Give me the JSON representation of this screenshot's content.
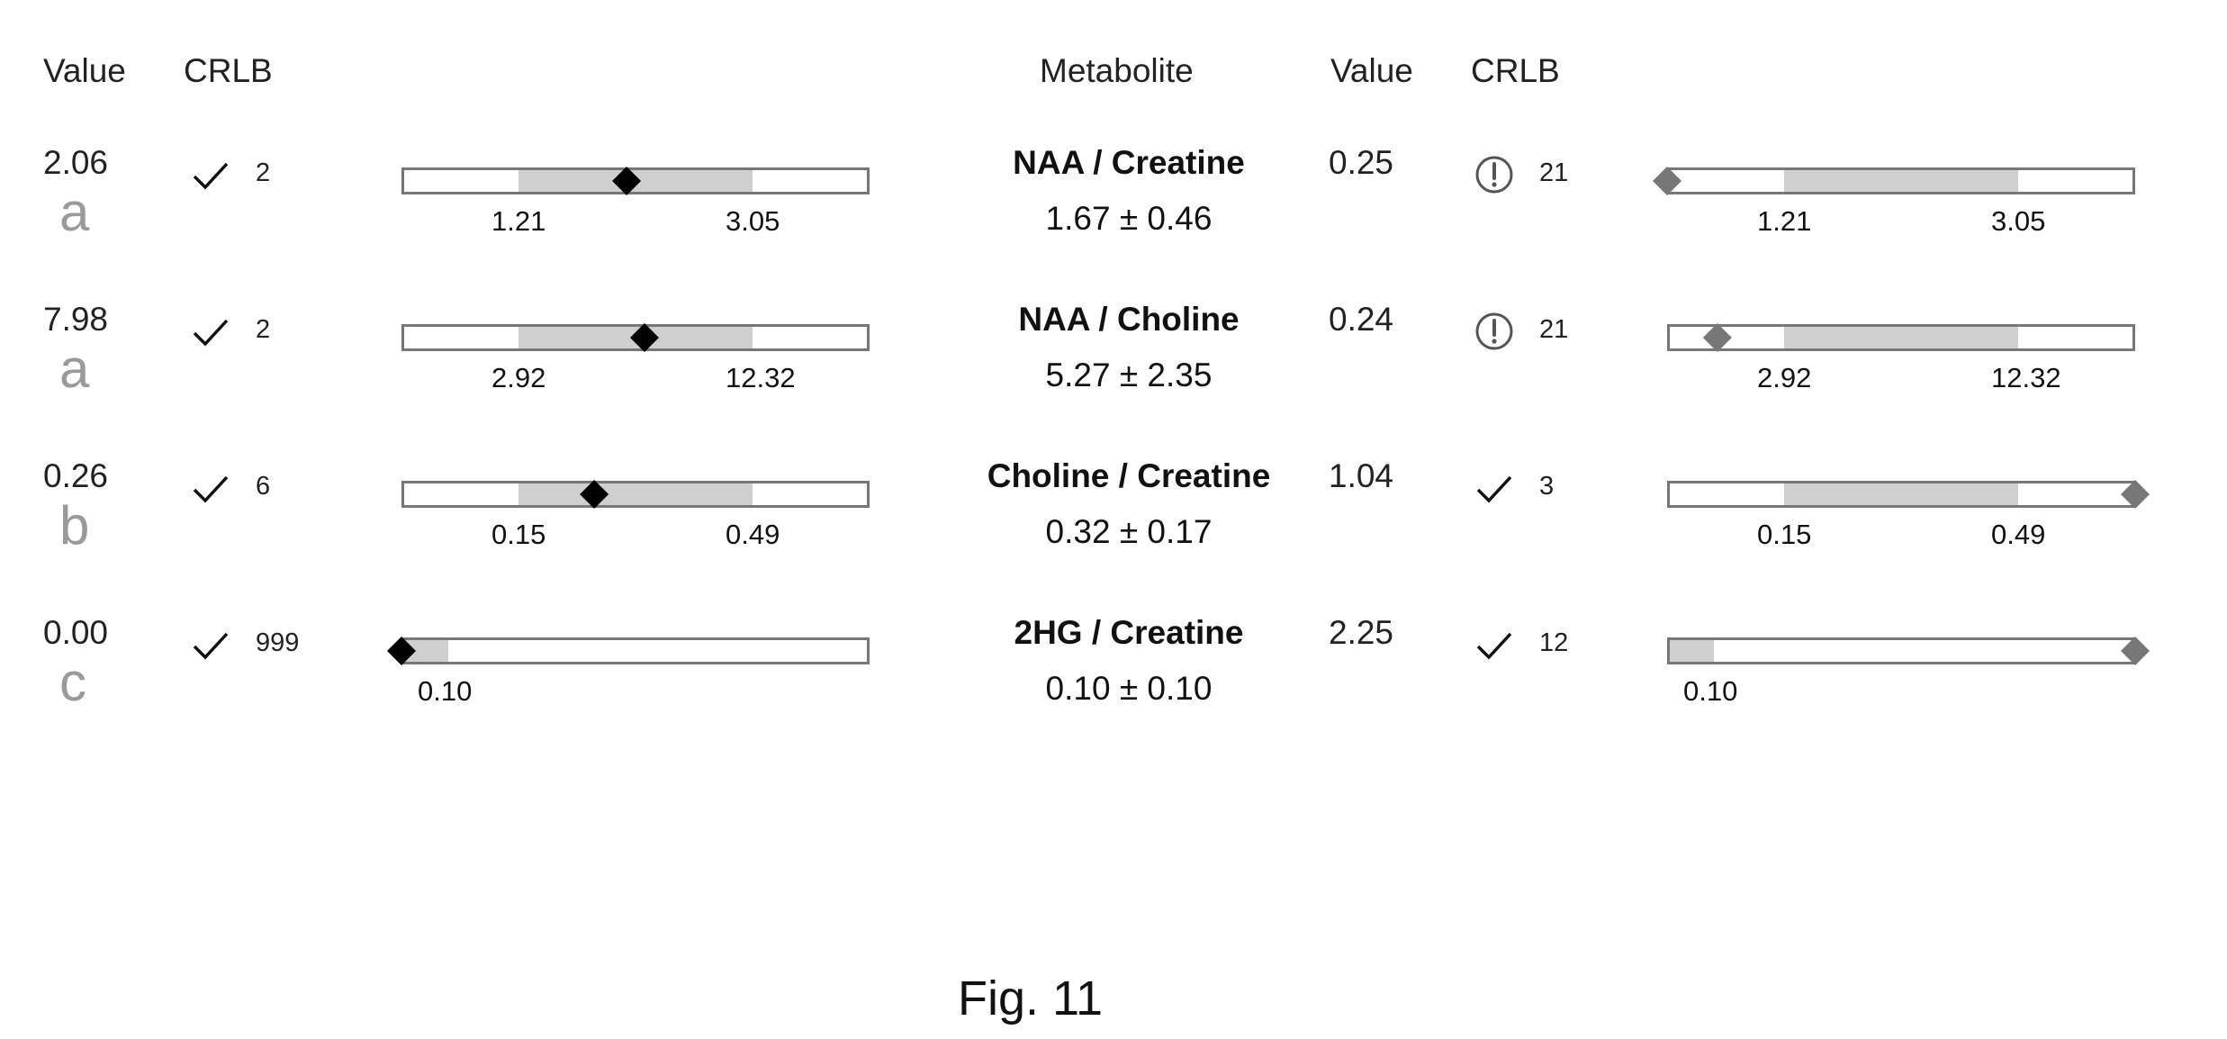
{
  "headers": {
    "left_value": "Value",
    "left_crlb": "CRLB",
    "metabolite": "Metabolite",
    "right_value": "Value",
    "right_crlb": "CRLB"
  },
  "rows": [
    {
      "metabolite": "NAA / Creatine",
      "range_text": "1.67 ± 0.46",
      "left": {
        "value": "2.06",
        "grade": "a",
        "crlb": "2",
        "crlb_status": "check",
        "marker": 2.06
      },
      "right": {
        "value": "0.25",
        "crlb": "21",
        "crlb_status": "warning",
        "marker": 0.25
      },
      "scale": {
        "min_label": "1.21",
        "max_label": "3.05",
        "low": 1.21,
        "high": 3.05,
        "left_shaded": [
          1.21,
          3.05
        ],
        "right_shaded": [
          1.21,
          3.05
        ]
      }
    },
    {
      "metabolite": "NAA / Choline",
      "range_text": "5.27 ± 2.35",
      "left": {
        "value": "7.98",
        "grade": "a",
        "crlb": "2",
        "crlb_status": "check",
        "marker": 7.98
      },
      "right": {
        "value": "0.24",
        "crlb": "21",
        "crlb_status": "warning",
        "marker": 0.24
      },
      "scale": {
        "min_label": "2.92",
        "max_label": "12.32",
        "low": 2.92,
        "high": 12.32,
        "left_shaded": [
          2.92,
          12.32
        ],
        "right_shaded": [
          2.92,
          12.32
        ]
      }
    },
    {
      "metabolite": "Choline / Creatine",
      "range_text": "0.32 ± 0.17",
      "left": {
        "value": "0.26",
        "grade": "b",
        "crlb": "6",
        "crlb_status": "check",
        "marker": 0.26
      },
      "right": {
        "value": "1.04",
        "crlb": "3",
        "crlb_status": "check",
        "marker": 1.04
      },
      "scale": {
        "min_label": "0.15",
        "max_label": "0.49",
        "low": 0.15,
        "high": 0.49,
        "left_shaded": [
          0.15,
          0.49
        ],
        "right_shaded": [
          0.15,
          0.49
        ]
      }
    },
    {
      "metabolite": "2HG / Creatine",
      "range_text": "0.10 ± 0.10",
      "left": {
        "value": "0.00",
        "grade": "c",
        "crlb": "999",
        "crlb_status": "check",
        "marker": 0.0
      },
      "right": {
        "value": "2.25",
        "crlb": "12",
        "crlb_status": "check",
        "marker": 2.25
      },
      "scale": {
        "min_label": "0.10",
        "max_label": "",
        "low": 0.1,
        "high": null,
        "left_shaded": [
          0.0,
          0.1
        ],
        "right_shaded": [
          0.0,
          0.1
        ]
      }
    }
  ],
  "caption": "Fig. 11",
  "colors": {
    "shade": "#cfcfcf",
    "bar_outline": "#777777",
    "left_marker": "#000000",
    "right_marker": "#777777",
    "grade_text": "#9a9a9a"
  }
}
